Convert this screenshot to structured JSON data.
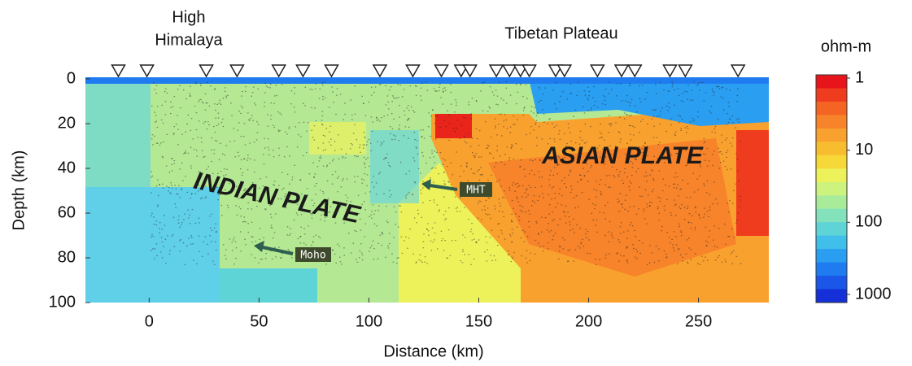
{
  "chart_data": {
    "type": "section",
    "xlabel": "Distance (km)",
    "ylabel": "Depth (km)",
    "xlim": [
      -29,
      282
    ],
    "ylim": [
      0,
      100
    ],
    "y_inverted": true,
    "xticks": [
      0,
      50,
      100,
      150,
      200,
      250
    ],
    "yticks": [
      0,
      20,
      40,
      60,
      80,
      100
    ],
    "stations": [
      -14,
      -1,
      26,
      40,
      59,
      70,
      83,
      105,
      120,
      133,
      142,
      146,
      158,
      164,
      169,
      173,
      185,
      189,
      204,
      215,
      221,
      237,
      244,
      268
    ],
    "annotations": {
      "region_left": [
        "High",
        "Himalaya"
      ],
      "region_right": "Tibetan Plateau",
      "plate_left": "INDIAN PLATE",
      "plate_right": "ASIAN PLATE",
      "mht": "MHT",
      "moho": "Moho"
    },
    "colorbar": {
      "title": "ohm-m",
      "log": true,
      "lim": [
        1,
        1000
      ],
      "ticks": [
        1,
        10,
        100,
        1000
      ],
      "colors": [
        "#e8141b",
        "#f03c1e",
        "#f46423",
        "#f7832a",
        "#f9a12e",
        "#f8bd2f",
        "#f6d939",
        "#eef25a",
        "#cdf27d",
        "#a8ec9a",
        "#83e2bb",
        "#5fd4d6",
        "#3fbfe9",
        "#2a9ef0",
        "#1f7cf0",
        "#1a56e8",
        "#1530d8"
      ]
    }
  }
}
